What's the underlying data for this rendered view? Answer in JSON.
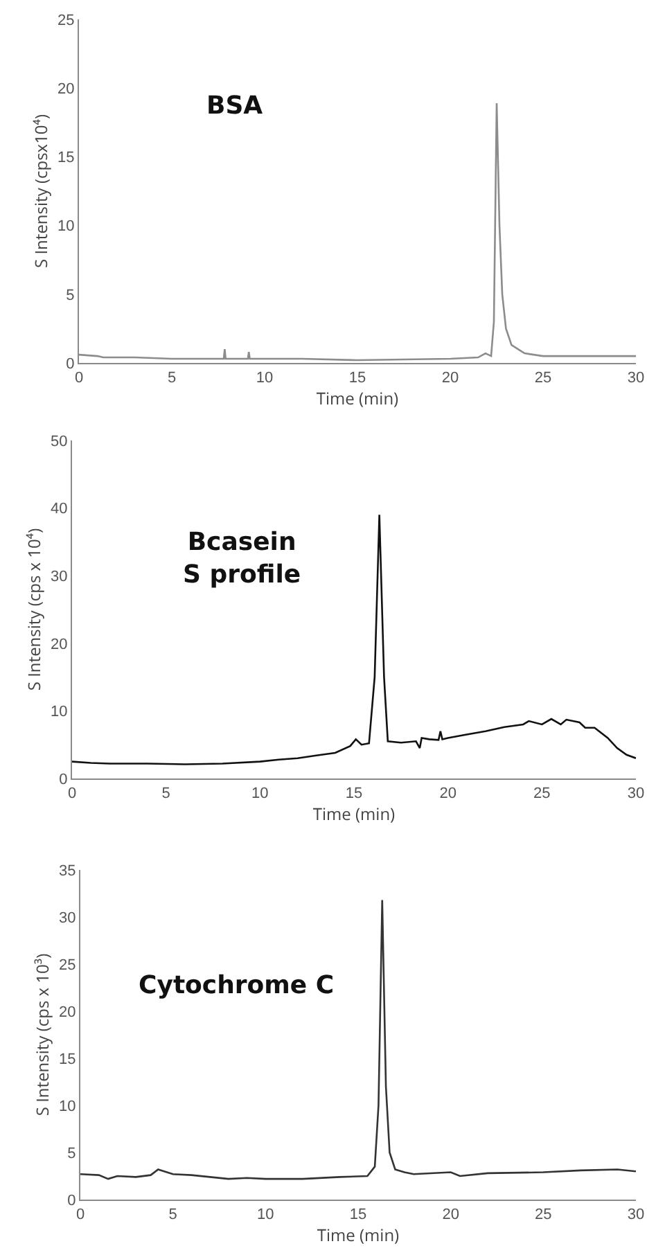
{
  "chart_data": [
    {
      "type": "line",
      "xlabel": "Time (min)",
      "ylabel": "S Intensity (cpsx10⁴)",
      "annotations": [
        "BSA"
      ],
      "xlim": [
        0,
        30
      ],
      "xticks": [
        0,
        5,
        10,
        15,
        20,
        25,
        30
      ],
      "ylim": [
        0,
        25
      ],
      "yticks": [
        0,
        5,
        10,
        15,
        20,
        25
      ],
      "grid": false,
      "series": [
        {
          "color": "#8c8c8c",
          "x": [
            0,
            1,
            1.3,
            3,
            5,
            7.8,
            7.85,
            7.9,
            9.1,
            9.15,
            9.2,
            12,
            15,
            20,
            21.5,
            21.9,
            22.2,
            22.35,
            22.5,
            22.65,
            22.8,
            23,
            23.3,
            24,
            25,
            30
          ],
          "values": [
            0.6,
            0.5,
            0.4,
            0.4,
            0.3,
            0.3,
            1.0,
            0.3,
            0.3,
            0.8,
            0.3,
            0.3,
            0.2,
            0.3,
            0.4,
            0.7,
            0.5,
            3,
            18.9,
            10,
            5,
            2.5,
            1.3,
            0.7,
            0.5,
            0.5
          ]
        }
      ]
    },
    {
      "type": "line",
      "xlabel": "Time (min)",
      "ylabel": "S Intensity (cps x 10⁴)",
      "annotations": [
        "Bcasein\nS profile"
      ],
      "xlim": [
        0,
        30
      ],
      "xticks": [
        0,
        5,
        10,
        15,
        20,
        25,
        30
      ],
      "ylim": [
        0,
        50
      ],
      "yticks": [
        0,
        10,
        20,
        30,
        40,
        50
      ],
      "grid": false,
      "series": [
        {
          "color": "#111111",
          "x": [
            0,
            1,
            2,
            4,
            6,
            8,
            10,
            11,
            12,
            13,
            14,
            14.8,
            15.1,
            15.4,
            15.8,
            16.1,
            16.35,
            16.6,
            16.8,
            17.5,
            18.3,
            18.5,
            18.6,
            19,
            19.5,
            19.6,
            19.7,
            20,
            21,
            22,
            23,
            24,
            24.3,
            25,
            25.5,
            26,
            26.3,
            27,
            27.3,
            27.8,
            28.5,
            29,
            29.5,
            30
          ],
          "values": [
            2.5,
            2.3,
            2.2,
            2.2,
            2.1,
            2.2,
            2.5,
            2.8,
            3.0,
            3.4,
            3.8,
            4.8,
            5.8,
            5.0,
            5.2,
            15,
            39,
            15,
            5.5,
            5.3,
            5.5,
            4.5,
            6,
            5.8,
            5.7,
            7.0,
            5.8,
            6.0,
            6.5,
            7.0,
            7.6,
            8.0,
            8.5,
            8.0,
            8.8,
            8.0,
            8.7,
            8.3,
            7.5,
            7.5,
            6.0,
            4.5,
            3.5,
            3.0
          ]
        }
      ]
    },
    {
      "type": "line",
      "xlabel": "Time (min)",
      "ylabel": "S Intensity (cps x 10³)",
      "annotations": [
        "Cytochrome C"
      ],
      "xlim": [
        0,
        30
      ],
      "xticks": [
        0,
        5,
        10,
        15,
        20,
        25,
        30
      ],
      "ylim": [
        0,
        35
      ],
      "yticks": [
        0,
        5,
        10,
        15,
        20,
        25,
        30,
        35
      ],
      "grid": false,
      "series": [
        {
          "color": "#333333",
          "x": [
            0,
            1,
            1.5,
            2,
            3,
            3.8,
            4.2,
            5,
            6,
            7,
            8,
            9,
            10,
            12,
            14,
            15.5,
            15.9,
            16.1,
            16.3,
            16.5,
            16.7,
            17,
            17.5,
            18,
            20,
            20.5,
            22,
            25,
            27,
            29,
            30
          ],
          "values": [
            2.7,
            2.6,
            2.2,
            2.5,
            2.4,
            2.6,
            3.2,
            2.7,
            2.6,
            2.4,
            2.2,
            2.3,
            2.2,
            2.2,
            2.4,
            2.5,
            3.5,
            10,
            31.8,
            12,
            5,
            3.2,
            2.9,
            2.7,
            2.9,
            2.5,
            2.8,
            2.9,
            3.1,
            3.2,
            3.0
          ]
        }
      ]
    }
  ]
}
